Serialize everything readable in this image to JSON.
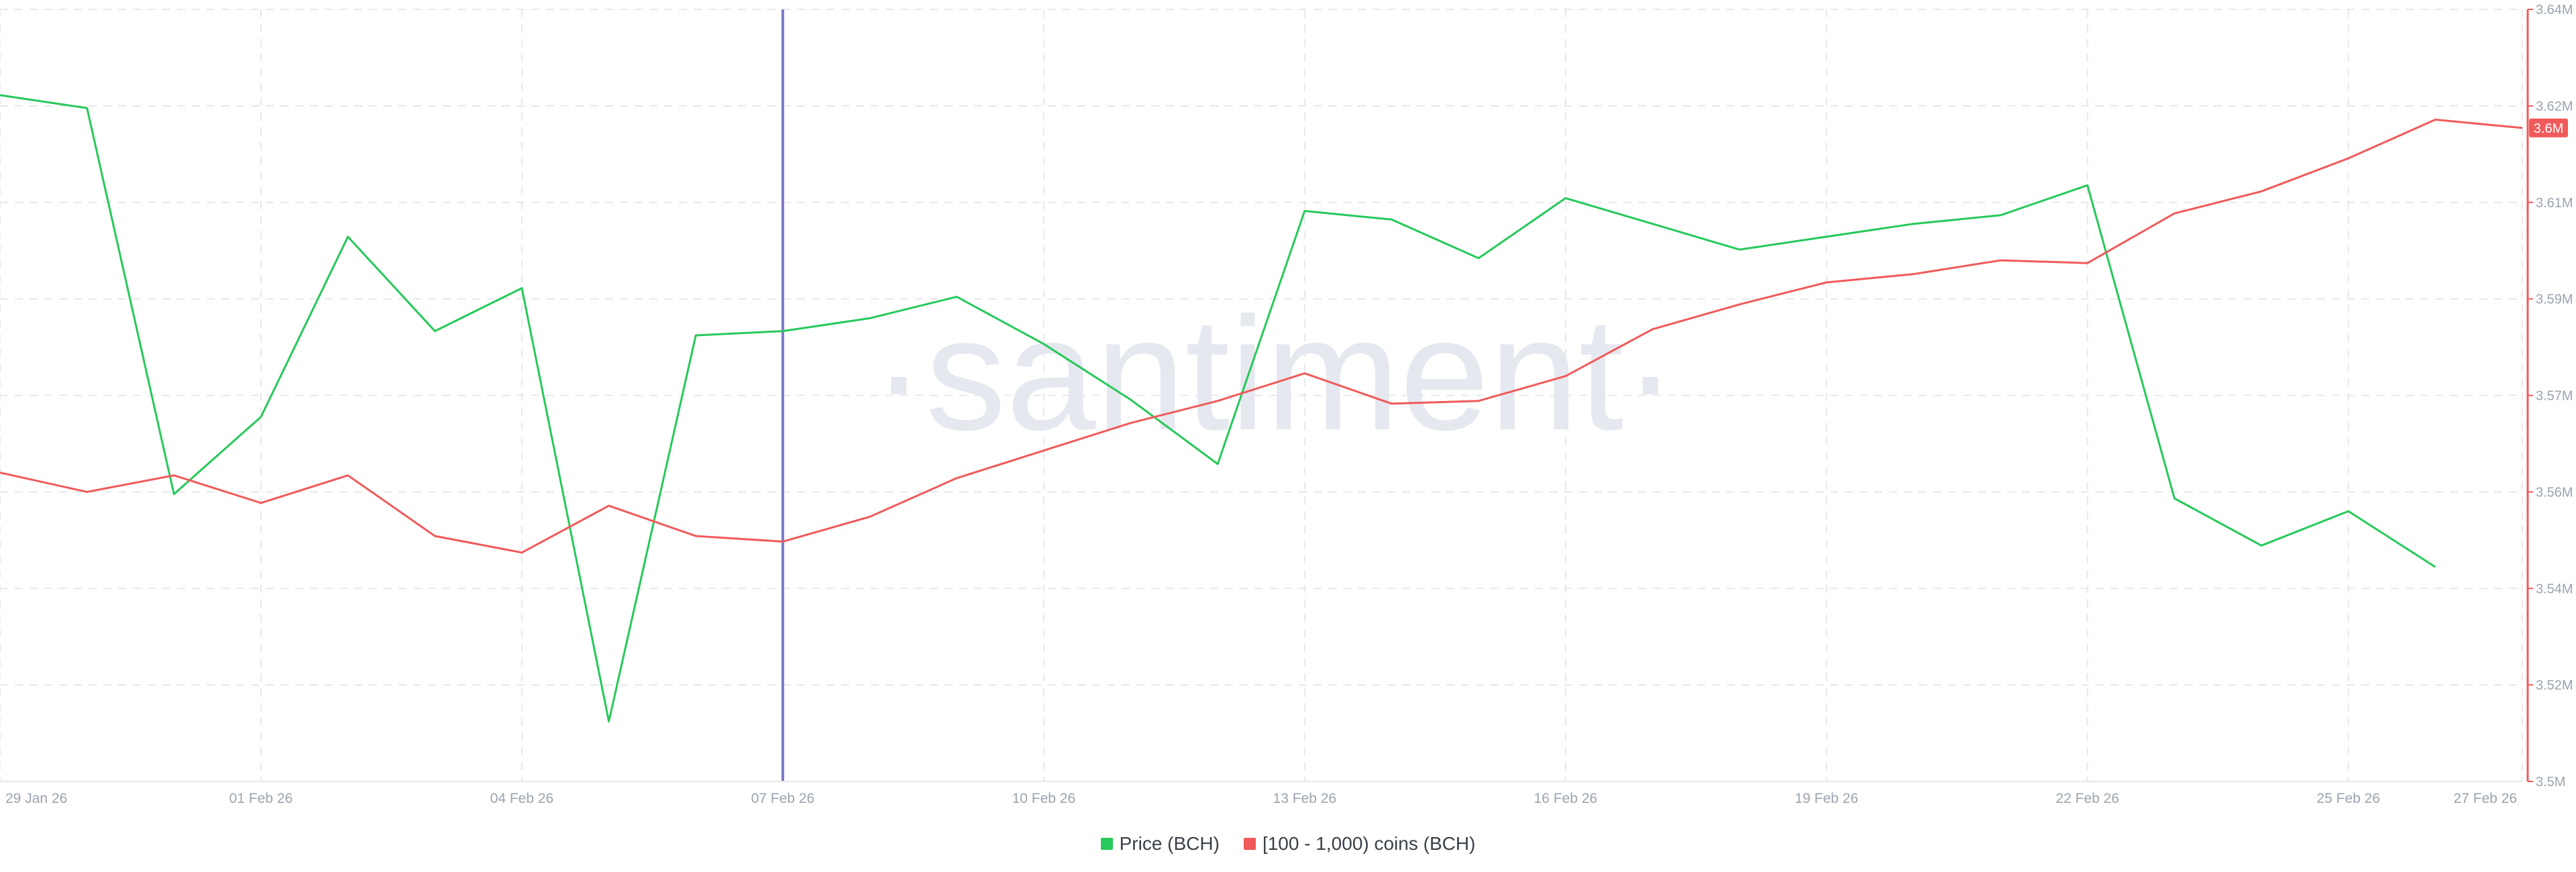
{
  "chart_data": {
    "type": "line",
    "watermark": "·santiment·",
    "x": [
      "29 Jan 26",
      "30 Jan 26",
      "31 Jan 26",
      "01 Feb 26",
      "02 Feb 26",
      "03 Feb 26",
      "04 Feb 26",
      "05 Feb 26",
      "06 Feb 26",
      "07 Feb 26",
      "08 Feb 26",
      "09 Feb 26",
      "10 Feb 26",
      "11 Feb 26",
      "12 Feb 26",
      "13 Feb 26",
      "14 Feb 26",
      "15 Feb 26",
      "16 Feb 26",
      "17 Feb 26",
      "18 Feb 26",
      "19 Feb 26",
      "20 Feb 26",
      "21 Feb 26",
      "22 Feb 26",
      "23 Feb 26",
      "24 Feb 26",
      "25 Feb 26",
      "26 Feb 26",
      "27 Feb 26"
    ],
    "x_ticks": [
      "29 Jan 26",
      "01 Feb 26",
      "04 Feb 26",
      "07 Feb 26",
      "10 Feb 26",
      "13 Feb 26",
      "16 Feb 26",
      "19 Feb 26",
      "22 Feb 26",
      "25 Feb 26",
      "27 Feb 26"
    ],
    "y_right": {
      "ticks": [
        "3.5M",
        "3.52M",
        "3.54M",
        "3.56M",
        "3.57M",
        "3.59M",
        "3.61M",
        "3.62M",
        "3.64M"
      ],
      "current_value_label": "3.6M",
      "color": "#f05a5a"
    },
    "grid": true,
    "vertical_marker": {
      "x": "07 Feb 26",
      "color": "#7b78c6"
    },
    "series": [
      {
        "name": "Price (BCH)",
        "color": "#26c95a",
        "hidden_axis": true,
        "values": [
          580,
          577,
          487,
          505,
          547,
          525,
          535,
          434,
          524,
          525,
          528,
          533,
          522,
          509,
          494,
          553,
          551,
          542,
          556,
          550,
          544,
          547,
          550,
          552,
          559,
          486,
          475,
          483,
          470,
          null
        ]
      },
      {
        "name": "[100 - 1,000) coins (BCH)",
        "color": "#f05a5a",
        "values": [
          3556000,
          3552500,
          3555500,
          3550500,
          3555500,
          3544500,
          3541500,
          3550000,
          3544500,
          3543500,
          3548000,
          3555000,
          3560000,
          3565000,
          3569000,
          3574000,
          3568500,
          3569000,
          3573500,
          3582000,
          3586500,
          3590500,
          3592000,
          3594500,
          3594000,
          3603000,
          3607000,
          3613000,
          3620000,
          3618500
        ]
      }
    ]
  }
}
